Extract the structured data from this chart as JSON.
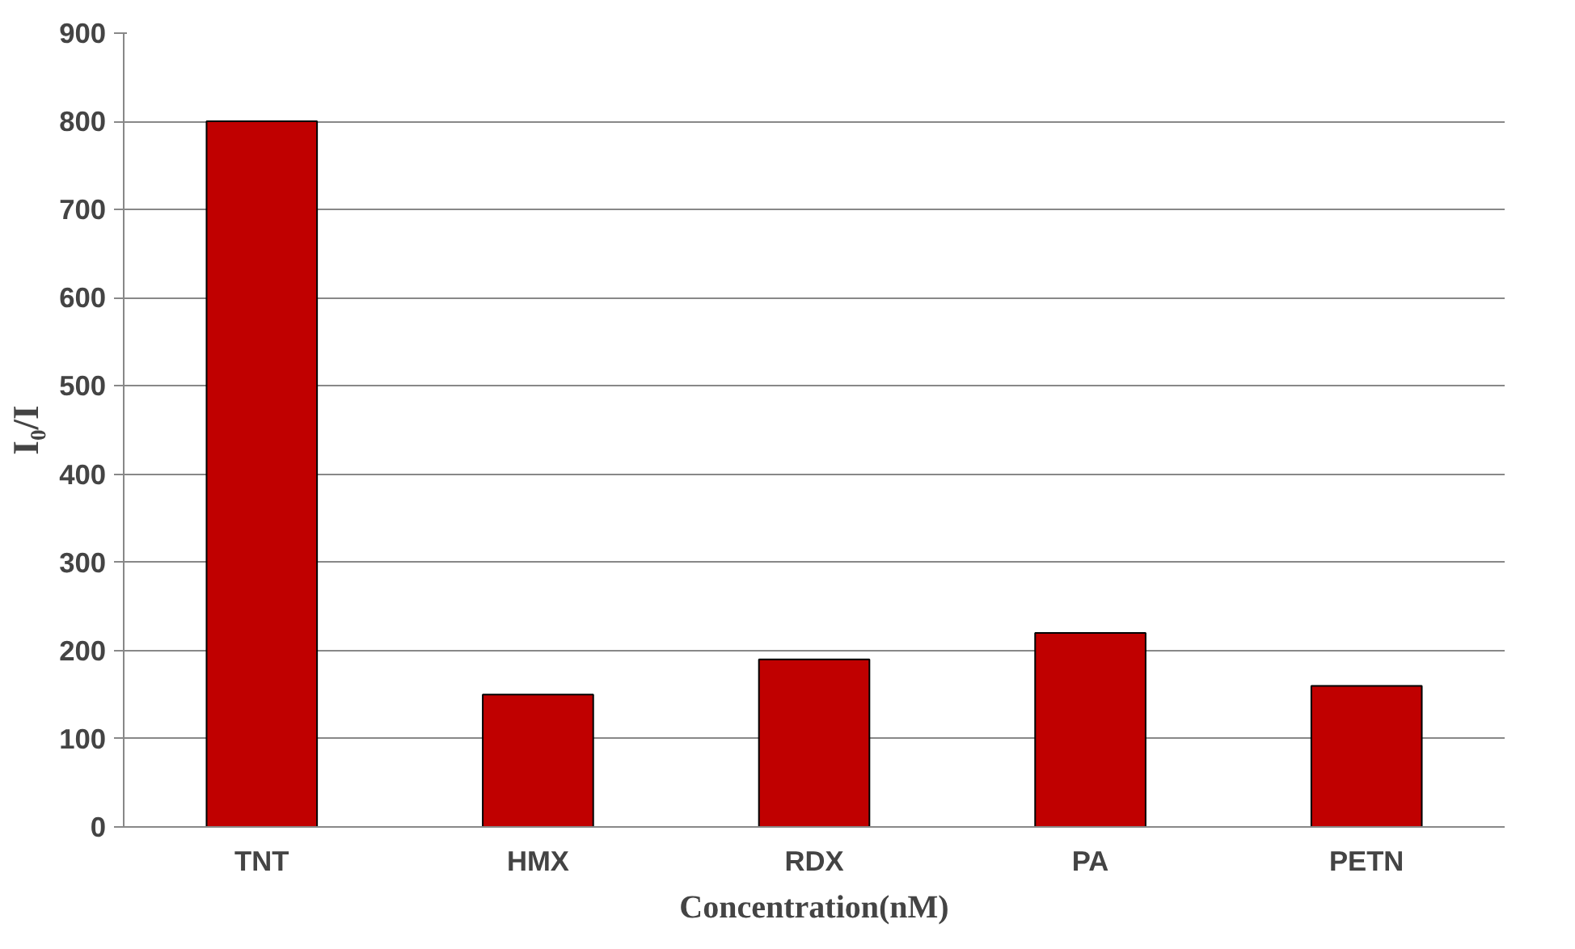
{
  "chart_data": {
    "type": "bar",
    "xlabel": "Concentration(nM)",
    "ylabel": "I₀/I",
    "categories": [
      "TNT",
      "HMX",
      "RDX",
      "PA",
      "PETN"
    ],
    "values": [
      800,
      150,
      190,
      220,
      160
    ],
    "color": "#c00000",
    "ylim": [
      0,
      900
    ],
    "yticks": [
      0,
      100,
      200,
      300,
      400,
      500,
      600,
      700,
      800,
      900
    ],
    "grid": "y"
  }
}
